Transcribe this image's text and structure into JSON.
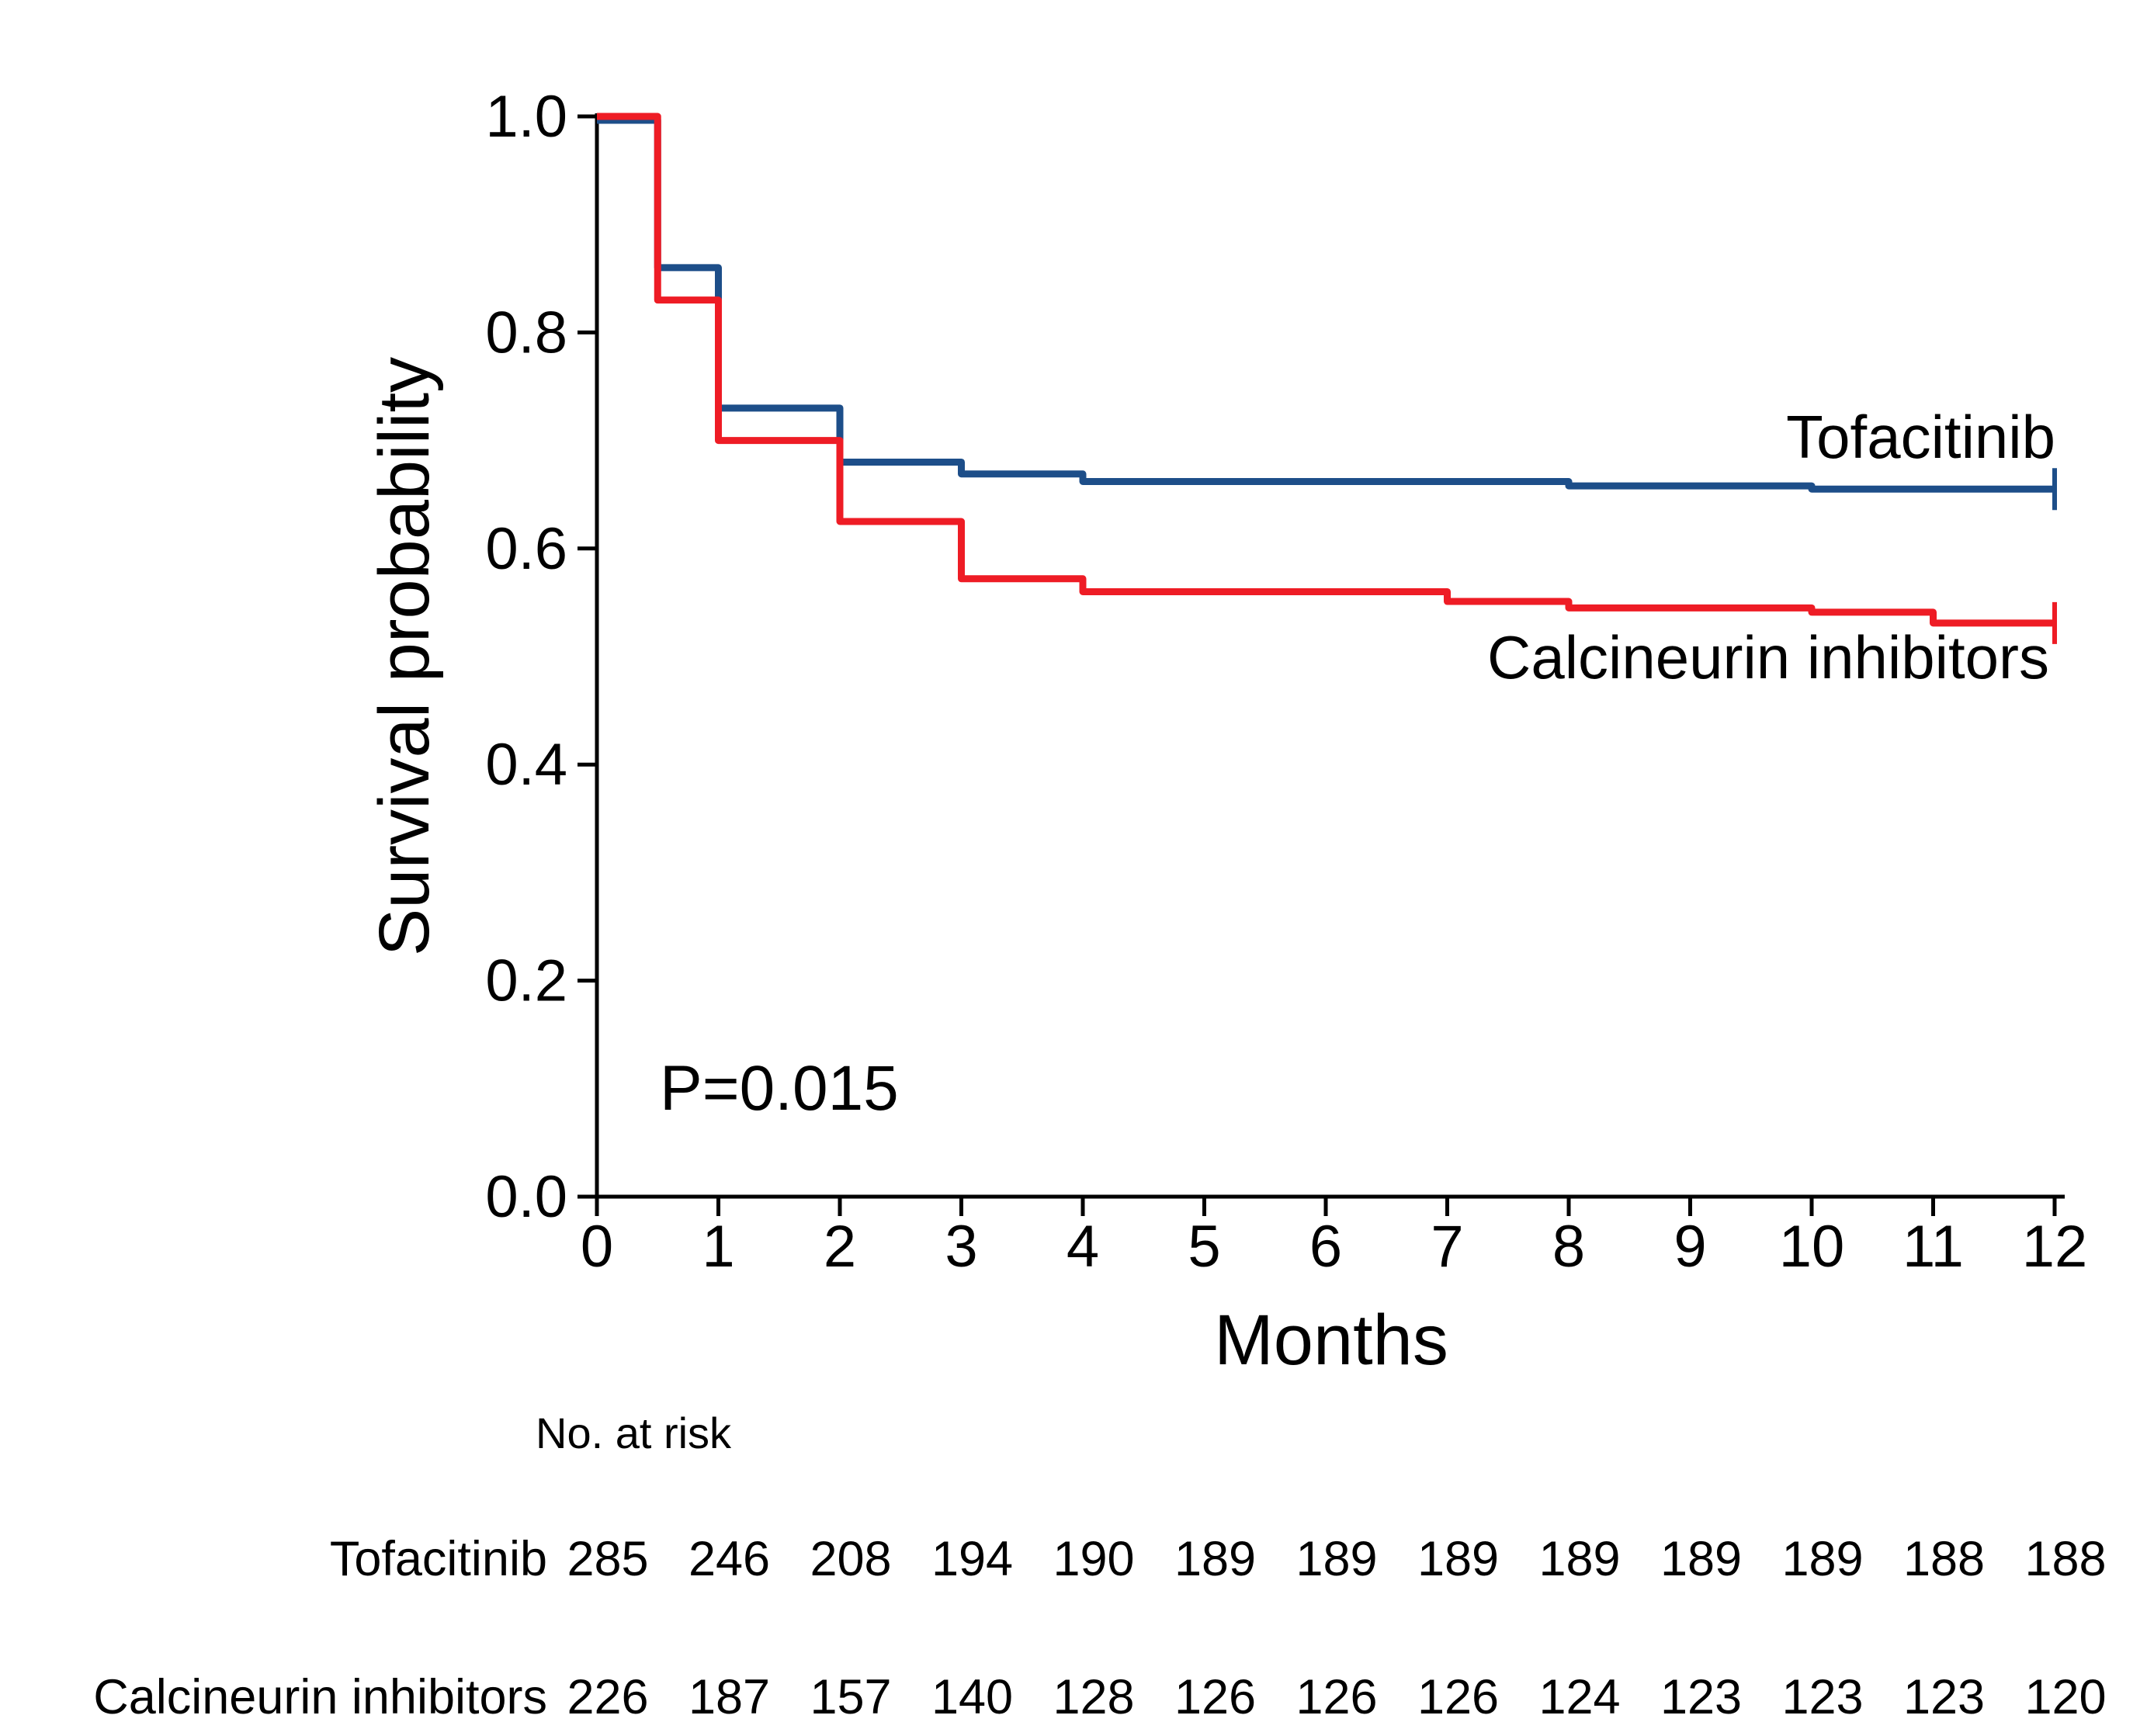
{
  "chart_data": {
    "type": "line",
    "subtype": "kaplan-meier-step-curve",
    "title": "",
    "xlabel": "Months",
    "ylabel": "Survival probability",
    "p_value_label": "P=0.015",
    "xlim": [
      0,
      12
    ],
    "ylim": [
      0.0,
      1.0
    ],
    "grid": false,
    "legend_position": "curve-end-labels",
    "xticks": [
      0,
      1,
      2,
      3,
      4,
      5,
      6,
      7,
      8,
      9,
      10,
      11,
      12
    ],
    "yticks": [
      0.0,
      0.2,
      0.4,
      0.6,
      0.8,
      1.0
    ],
    "ytick_labels": [
      "0.0",
      "0.2",
      "0.4",
      "0.6",
      "0.8",
      "1.0"
    ],
    "series": [
      {
        "name": "Tofacitinib",
        "color": "#1d4e89",
        "steps": [
          [
            0,
            1.0
          ],
          [
            0.5,
            0.86
          ],
          [
            1,
            0.73
          ],
          [
            2,
            0.68
          ],
          [
            3,
            0.669
          ],
          [
            4,
            0.662
          ],
          [
            8,
            0.658
          ],
          [
            10,
            0.655
          ]
        ],
        "end_time": 12,
        "censored_at_end": true
      },
      {
        "name": "Calcineurin inhibitors",
        "color": "#ee1c25",
        "steps": [
          [
            0,
            1.0
          ],
          [
            0.5,
            0.83
          ],
          [
            1,
            0.7
          ],
          [
            2,
            0.625
          ],
          [
            3,
            0.572
          ],
          [
            4,
            0.56
          ],
          [
            7,
            0.551
          ],
          [
            8,
            0.545
          ],
          [
            10,
            0.541
          ],
          [
            11,
            0.531
          ]
        ],
        "end_time": 12,
        "censored_at_end": true
      }
    ],
    "risk_table": {
      "title": "No. at risk",
      "time_points": [
        0,
        1,
        2,
        3,
        4,
        5,
        6,
        7,
        8,
        9,
        10,
        11,
        12
      ],
      "rows": [
        {
          "label": "Tofacitinib",
          "color": "#1d4e89",
          "values": [
            285,
            246,
            208,
            194,
            190,
            189,
            189,
            189,
            189,
            189,
            189,
            188,
            188
          ]
        },
        {
          "label": "Calcineurin inhibitors",
          "color": "#ee1c25",
          "values": [
            226,
            187,
            157,
            140,
            128,
            126,
            126,
            126,
            124,
            123,
            123,
            123,
            120
          ]
        }
      ]
    }
  }
}
